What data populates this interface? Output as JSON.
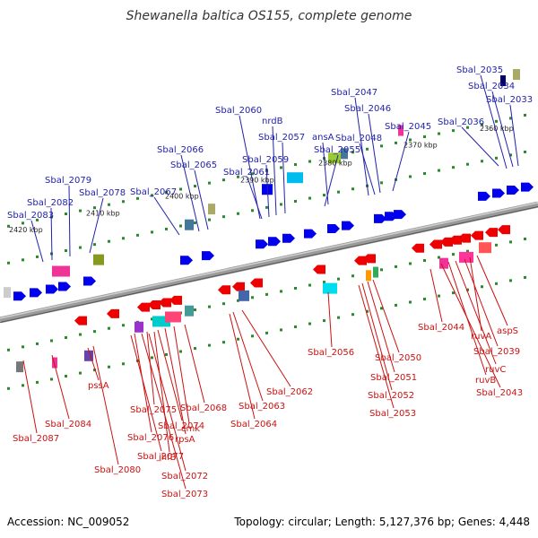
{
  "title": "Shewanella baltica OS155, complete genome",
  "accession": "Accession: NC_009052",
  "summary": "Topology: circular; Length: 5,127,376 bp; Genes: 4,448",
  "colors": {
    "top_label": "#2222aa",
    "bottom_label": "#cc1111",
    "forward_arrow": "#0000ee",
    "reverse_arrow": "#ee0000",
    "backbone": "#888888",
    "tick": "#228822"
  },
  "kbp_ticks": [
    "2360 kbp",
    "2370 kbp",
    "2380 kbp",
    "2390 kbp",
    "2400 kbp",
    "2410 kbp",
    "2420 kbp"
  ],
  "top_labels": [
    "Sbal_2035",
    "Sbal_2034",
    "Sbal_2033",
    "Sbal_2036",
    "Sbal_2047",
    "Sbal_2046",
    "Sbal_2045",
    "Sbal_2048",
    "Sbal_2060",
    "nrdB",
    "Sbal_2057",
    "ansA",
    "Sbal_2055",
    "Sbal_2059",
    "Sbal_2061",
    "Sbal_2066",
    "Sbal_2065",
    "Sbal_2067",
    "Sbal_2079",
    "Sbal_2078",
    "Sbal_2082",
    "Sbal_2083"
  ],
  "bottom_labels": [
    "aspS",
    "ruvA",
    "Sbal_2039",
    "ruvC",
    "ruvB",
    "Sbal_2043",
    "Sbal_2044",
    "Sbal_2050",
    "Sbal_2051",
    "Sbal_2052",
    "Sbal_2053",
    "Sbal_2056",
    "Sbal_2062",
    "Sbal_2063",
    "Sbal_2064",
    "Sbal_2068",
    "cmk",
    "rpsA",
    "Sbal_2074",
    "Sbal_2075",
    "Sbal_2076",
    "ihfB",
    "Sbal_2072",
    "Sbal_2073",
    "Sbal_2077",
    "pssA",
    "Sbal_2080",
    "Sbal_2084",
    "Sbal_2087"
  ]
}
